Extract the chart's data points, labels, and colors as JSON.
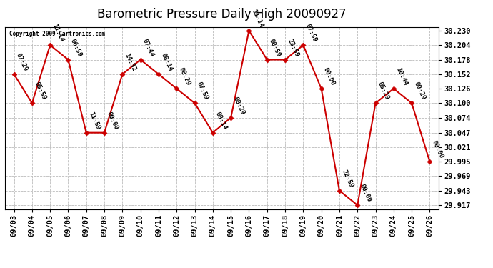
{
  "title": "Barometric Pressure Daily High 20090927",
  "copyright": "Copyright 2009 Cartronics.com",
  "dates": [
    "09/03",
    "09/04",
    "09/05",
    "09/06",
    "09/07",
    "09/08",
    "09/09",
    "09/10",
    "09/11",
    "09/12",
    "09/13",
    "09/14",
    "09/15",
    "09/16",
    "09/17",
    "09/18",
    "09/19",
    "09/20",
    "09/21",
    "09/22",
    "09/23",
    "09/24",
    "09/25",
    "09/26"
  ],
  "values": [
    30.152,
    30.1,
    30.204,
    30.178,
    30.047,
    30.047,
    30.152,
    30.178,
    30.152,
    30.126,
    30.1,
    30.047,
    30.074,
    30.23,
    30.178,
    30.178,
    30.204,
    30.126,
    29.943,
    29.917,
    30.1,
    30.126,
    30.1,
    29.995
  ],
  "time_labels": [
    "07:29",
    "05:59",
    "11:14",
    "06:59",
    "11:59",
    "00:00",
    "14:32",
    "07:44",
    "08:14",
    "08:29",
    "07:59",
    "08:14",
    "08:29",
    "11:14",
    "08:59",
    "23:59",
    "07:59",
    "00:00",
    "22:59",
    "00:00",
    "05:29",
    "10:44",
    "09:29",
    "00:00"
  ],
  "ylim_min": 29.91,
  "ylim_max": 30.237,
  "yticks": [
    29.917,
    29.943,
    29.969,
    29.995,
    30.021,
    30.047,
    30.074,
    30.1,
    30.126,
    30.152,
    30.178,
    30.204,
    30.23
  ],
  "line_color": "#cc0000",
  "marker_color": "#cc0000",
  "bg_color": "#ffffff",
  "grid_color": "#bbbbbb",
  "title_fontsize": 12,
  "tick_fontsize": 7.5,
  "label_fontsize": 6.5
}
